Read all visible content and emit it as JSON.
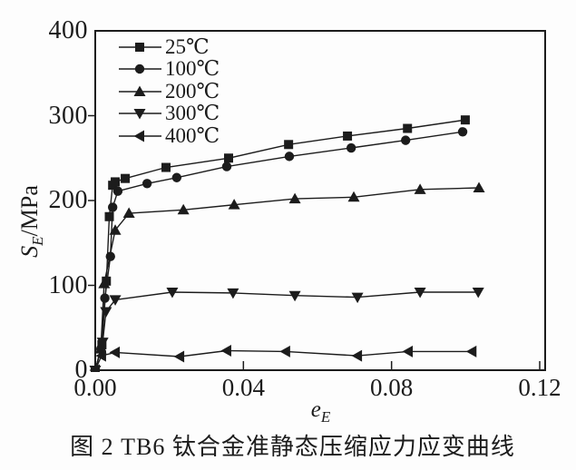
{
  "figure": {
    "caption": "图 2  TB6 钛合金准静态压缩应力应变曲线",
    "background": "#fdfdfd",
    "ink_color": "#1c1c1c"
  },
  "axes": {
    "ylabel": {
      "base": "S",
      "sub": "E",
      "rest": "/MPa"
    },
    "xlabel": {
      "base": "e",
      "sub": "E"
    }
  },
  "chart_data": {
    "type": "line",
    "title": "",
    "xlabel": "e_E",
    "ylabel": "S_E/MPa",
    "xlim": [
      0,
      0.1215
    ],
    "ylim": [
      0,
      400
    ],
    "grid": false,
    "legend_position": "top-left-inside",
    "xticks": {
      "values": [
        0,
        0.04,
        0.08,
        0.12
      ],
      "labels": [
        "0.00",
        "0.04",
        "0.08",
        "0.12"
      ]
    },
    "yticks": {
      "values": [
        0,
        100,
        200,
        300,
        400
      ],
      "labels": [
        "0",
        "100",
        "200",
        "300",
        "400"
      ]
    },
    "series": [
      {
        "name": "25℃",
        "marker": "square",
        "color": "#1c1c1c",
        "points": [
          [
            0,
            0
          ],
          [
            0.0018,
            30
          ],
          [
            0.003,
            105
          ],
          [
            0.0038,
            181
          ],
          [
            0.0047,
            218
          ],
          [
            0.0054,
            222
          ],
          [
            0.0081,
            226
          ],
          [
            0.0191,
            239
          ],
          [
            0.036,
            250
          ],
          [
            0.0522,
            266
          ],
          [
            0.0681,
            276
          ],
          [
            0.0843,
            285
          ],
          [
            0.0999,
            295
          ]
        ]
      },
      {
        "name": "100℃",
        "marker": "circle",
        "color": "#1c1c1c",
        "points": [
          [
            0,
            0
          ],
          [
            0.0015,
            25
          ],
          [
            0.0026,
            85
          ],
          [
            0.0041,
            134
          ],
          [
            0.0047,
            192
          ],
          [
            0.0061,
            211
          ],
          [
            0.014,
            220
          ],
          [
            0.022,
            227
          ],
          [
            0.0355,
            240
          ],
          [
            0.0524,
            252
          ],
          [
            0.0691,
            262
          ],
          [
            0.0838,
            271
          ],
          [
            0.0992,
            281
          ]
        ]
      },
      {
        "name": "200℃",
        "marker": "triangle-up",
        "color": "#1c1c1c",
        "points": [
          [
            0,
            0
          ],
          [
            0.0015,
            25
          ],
          [
            0.0024,
            102
          ],
          [
            0.0054,
            165
          ],
          [
            0.0091,
            185
          ],
          [
            0.0238,
            189
          ],
          [
            0.0375,
            195
          ],
          [
            0.0539,
            202
          ],
          [
            0.0698,
            204
          ],
          [
            0.0877,
            213
          ],
          [
            0.1036,
            215
          ]
        ]
      },
      {
        "name": "300℃",
        "marker": "triangle-down",
        "color": "#1c1c1c",
        "points": [
          [
            0,
            0
          ],
          [
            0.002,
            33
          ],
          [
            0.0029,
            69
          ],
          [
            0.0054,
            83
          ],
          [
            0.0208,
            92
          ],
          [
            0.0372,
            91
          ],
          [
            0.0539,
            88
          ],
          [
            0.0708,
            86
          ],
          [
            0.0877,
            92
          ],
          [
            0.1034,
            92
          ]
        ]
      },
      {
        "name": "400℃",
        "marker": "triangle-left",
        "color": "#1c1c1c",
        "points": [
          [
            0,
            0
          ],
          [
            0.0017,
            17
          ],
          [
            0.0054,
            21
          ],
          [
            0.0228,
            16
          ],
          [
            0.0355,
            23
          ],
          [
            0.0514,
            22
          ],
          [
            0.0708,
            17
          ],
          [
            0.0845,
            22
          ],
          [
            0.1017,
            22
          ]
        ]
      }
    ]
  }
}
